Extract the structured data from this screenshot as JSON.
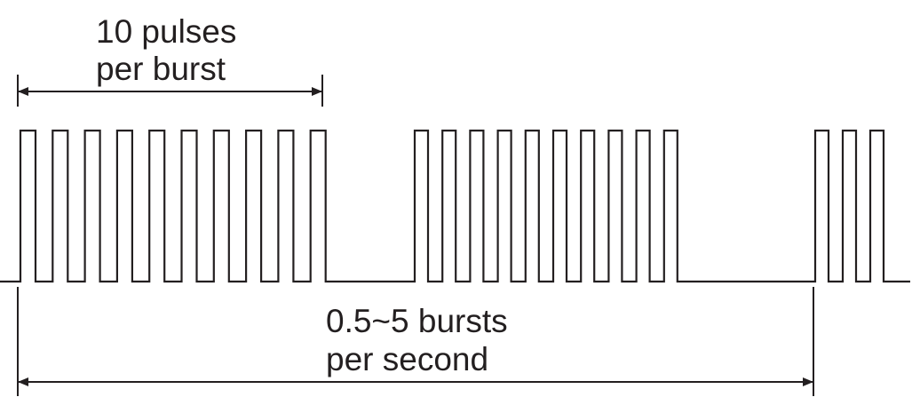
{
  "labels": {
    "burst_line1": "10 pulses",
    "burst_line2": "per burst",
    "rate_line1": "0.5~5 bursts",
    "rate_line2": "per second"
  },
  "pulse_train": {
    "bursts": [
      {
        "pulses": 10
      },
      {
        "pulses": 10
      },
      {
        "pulses": 3
      }
    ]
  },
  "colors": {
    "stroke": "#231f20",
    "background": "#ffffff"
  }
}
